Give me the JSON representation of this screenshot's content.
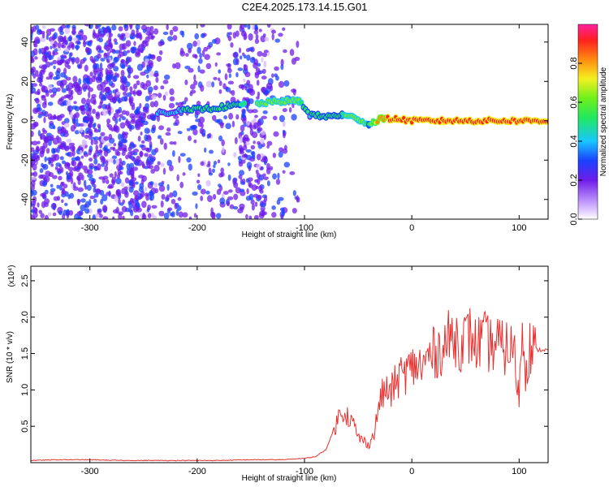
{
  "title": "C2E4.2025.173.14.15.G01",
  "colors": {
    "snr_line": "#e8312f",
    "axis": "#000000"
  },
  "chart_data": [
    {
      "type": "heatmap",
      "xlabel": "Height of straight line (km)",
      "ylabel": "Frequency (Hz)",
      "xlim": [
        -355,
        127
      ],
      "ylim": [
        -50,
        49
      ],
      "xticks": [
        -300,
        -200,
        -100,
        0,
        100
      ],
      "yticks": [
        -40,
        -20,
        0,
        20,
        40
      ],
      "colorbar": {
        "label": "Normalized spectral amplitude",
        "range": [
          0.0,
          1.0
        ],
        "ticks": [
          0.0,
          0.2,
          0.4,
          0.6,
          0.8
        ]
      },
      "ridge": [
        {
          "x": -237,
          "y": 4,
          "amp": 0.35
        },
        {
          "x": -215,
          "y": 5,
          "amp": 0.4
        },
        {
          "x": -195,
          "y": 6,
          "amp": 0.45
        },
        {
          "x": -175,
          "y": 7,
          "amp": 0.45
        },
        {
          "x": -160,
          "y": 8,
          "amp": 0.5
        },
        {
          "x": -140,
          "y": 9,
          "amp": 0.55
        },
        {
          "x": -120,
          "y": 10,
          "amp": 0.6
        },
        {
          "x": -105,
          "y": 10,
          "amp": 0.55
        },
        {
          "x": -95,
          "y": 3,
          "amp": 0.4
        },
        {
          "x": -80,
          "y": 2,
          "amp": 0.45
        },
        {
          "x": -65,
          "y": 3,
          "amp": 0.5
        },
        {
          "x": -50,
          "y": 1,
          "amp": 0.6
        },
        {
          "x": -40,
          "y": -2,
          "amp": 0.5
        },
        {
          "x": -30,
          "y": 1,
          "amp": 0.8
        },
        {
          "x": -15,
          "y": 1,
          "amp": 0.85
        },
        {
          "x": 0,
          "y": 0,
          "amp": 0.9
        },
        {
          "x": 30,
          "y": 0,
          "amp": 0.9
        },
        {
          "x": 60,
          "y": 0,
          "amp": 0.9
        },
        {
          "x": 90,
          "y": 0,
          "amp": 0.9
        },
        {
          "x": 127,
          "y": 0,
          "amp": 0.9
        }
      ]
    },
    {
      "type": "line",
      "xlabel": "Height of straight line (km)",
      "ylabel": "SNR (10 * v/v)",
      "y_multiplier": "(x10⁴)",
      "xlim": [
        -355,
        127
      ],
      "ylim": [
        0,
        2.7
      ],
      "xticks": [
        -300,
        -200,
        -100,
        0,
        100
      ],
      "yticks": [
        0.5,
        1.0,
        1.5,
        2.0,
        2.5
      ],
      "series": [
        {
          "x": [
            -355,
            -330,
            -300,
            -270,
            -240,
            -210,
            -180,
            -150,
            -120,
            -100,
            -90,
            -80,
            -70,
            -65,
            -60,
            -55,
            -50,
            -45,
            -40,
            -35,
            -30,
            -25,
            -20,
            -15,
            -10,
            -5,
            0,
            5,
            10,
            15,
            20,
            25,
            30,
            35,
            40,
            45,
            50,
            55,
            60,
            65,
            70,
            75,
            80,
            85,
            90,
            95,
            100,
            103,
            106,
            110,
            115,
            120,
            127
          ],
          "y": [
            0.03,
            0.04,
            0.04,
            0.03,
            0.03,
            0.03,
            0.03,
            0.04,
            0.04,
            0.06,
            0.08,
            0.18,
            0.55,
            0.75,
            0.65,
            0.55,
            0.35,
            0.3,
            0.25,
            0.4,
            0.85,
            1.0,
            0.95,
            1.1,
            1.2,
            1.25,
            1.3,
            1.35,
            1.3,
            1.45,
            1.5,
            1.55,
            1.6,
            1.7,
            1.75,
            1.65,
            1.7,
            1.75,
            1.6,
            1.7,
            1.65,
            1.6,
            1.65,
            1.55,
            1.6,
            1.55,
            0.9,
            1.9,
            1.3,
            1.6,
            1.55,
            1.55,
            1.55
          ]
        }
      ]
    }
  ]
}
